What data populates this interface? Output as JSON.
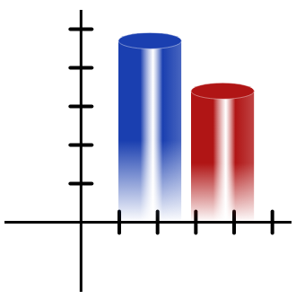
{
  "chart_data": {
    "type": "bar",
    "x": [
      1.8,
      3.7
    ],
    "values": [
      4.7,
      3.4
    ],
    "colors": [
      "#1a3fb0",
      "#b01515"
    ],
    "xlim": [
      -2,
      5.5
    ],
    "ylim": [
      -1.8,
      5.5
    ],
    "xticks": [
      1,
      2,
      3,
      4,
      5
    ],
    "yticks": [
      1,
      2,
      3,
      4,
      5
    ],
    "grid": false,
    "tick_labels": false
  }
}
